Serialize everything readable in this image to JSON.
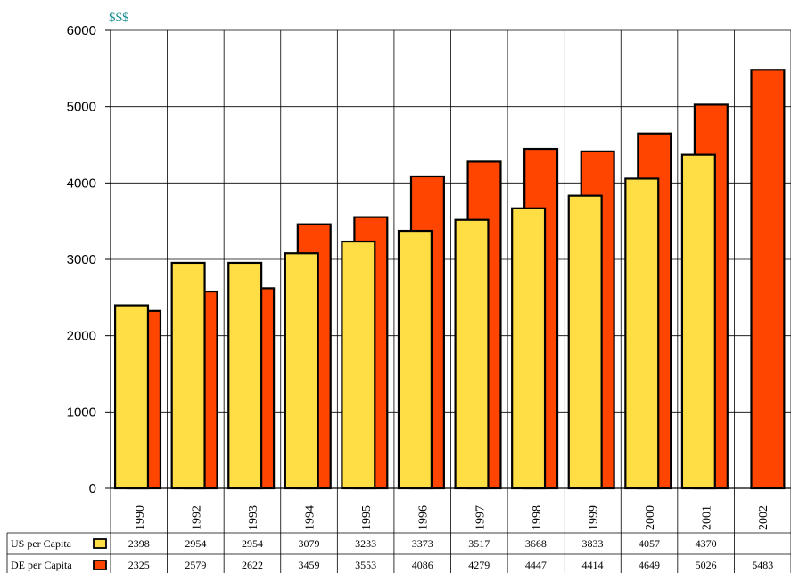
{
  "chart_data": {
    "type": "bar",
    "ylabel": "$$$",
    "ylim": [
      0,
      6000
    ],
    "yticks": [
      0,
      1000,
      2000,
      3000,
      4000,
      5000,
      6000
    ],
    "grid": true,
    "categories": [
      "1990",
      "1992",
      "1993",
      "1994",
      "1995",
      "1996",
      "1997",
      "1998",
      "1999",
      "2000",
      "2001",
      "2002"
    ],
    "series": [
      {
        "name": "US per Capita",
        "color": "#FFDD44",
        "values": [
          2398,
          2954,
          2954,
          3079,
          3233,
          3373,
          3517,
          3668,
          3833,
          4057,
          4370,
          null
        ]
      },
      {
        "name": "DE per Capita",
        "color": "#FF4500",
        "values": [
          2325,
          2579,
          2622,
          3459,
          3553,
          4086,
          4279,
          4447,
          4414,
          4649,
          5026,
          5483
        ]
      }
    ],
    "legend_placement": "data table rows below chart"
  }
}
